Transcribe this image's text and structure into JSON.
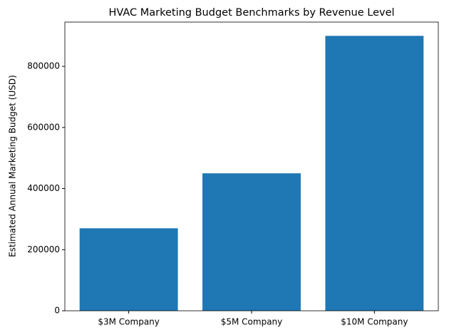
{
  "chart_data": {
    "type": "bar",
    "title": "HVAC Marketing Budget Benchmarks by Revenue Level",
    "ylabel": "Estimated Annual Marketing Budget (USD)",
    "categories": [
      "$3M Company",
      "$5M Company",
      "$10M Company"
    ],
    "values": [
      270000,
      450000,
      900000
    ],
    "color": "#1f77b4",
    "ylim": [
      0,
      945000
    ],
    "yticks": [
      0,
      200000,
      400000,
      600000,
      800000
    ],
    "grid": false
  }
}
